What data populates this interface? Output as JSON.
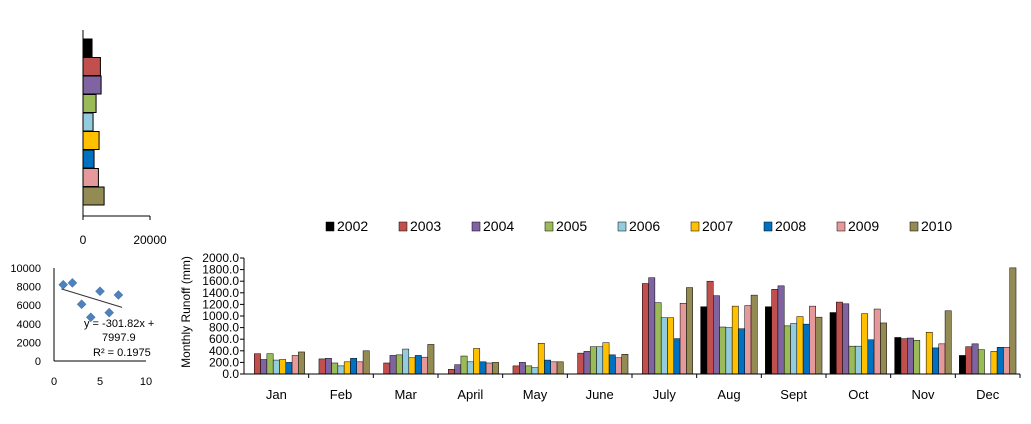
{
  "chart_data": [
    {
      "type": "bar",
      "orientation": "horizontal",
      "title": "",
      "xlabel": "",
      "ylabel": "",
      "xlim": [
        0,
        20000
      ],
      "x_ticks": [
        "0",
        "20000"
      ],
      "categories": [
        "2002",
        "2003",
        "2004",
        "2005",
        "2006",
        "2007",
        "2008",
        "2009",
        "2010"
      ],
      "values": [
        2700,
        5200,
        5400,
        3900,
        3000,
        4800,
        3300,
        4600,
        6300
      ],
      "colors": [
        "#000000",
        "#c0504d",
        "#8064a2",
        "#9bbb59",
        "#93cddd",
        "#ffc000",
        "#0070c0",
        "#e6999a",
        "#948a54"
      ],
      "grid": false
    },
    {
      "type": "scatter",
      "title": "",
      "xlabel": "",
      "ylabel": "",
      "xlim": [
        0,
        10
      ],
      "ylim": [
        0,
        10000
      ],
      "x_ticks": [
        "0",
        "5",
        "10"
      ],
      "y_ticks": [
        "0",
        "2000",
        "4000",
        "6000",
        "8000",
        "10000"
      ],
      "points": [
        {
          "x": 1,
          "y": 8200
        },
        {
          "x": 2,
          "y": 8400
        },
        {
          "x": 3,
          "y": 6100
        },
        {
          "x": 4,
          "y": 4700
        },
        {
          "x": 5,
          "y": 7500
        },
        {
          "x": 6,
          "y": 5200
        },
        {
          "x": 7,
          "y": 7100
        }
      ],
      "trendline": {
        "slope": -301.82,
        "intercept": 7997.9,
        "x_range": [
          1,
          7
        ]
      },
      "annotations": [
        "y = -301.82x +",
        "7997.9",
        "R² = 0.1975"
      ],
      "marker_color": "#4f81bd",
      "grid": false
    },
    {
      "type": "bar",
      "title": "",
      "xlabel": "",
      "ylabel": "Monthly  Runoff (mm)",
      "ylim": [
        0,
        2000
      ],
      "y_ticks": [
        "0.0",
        "200.0",
        "400.0",
        "600.0",
        "800.0",
        "1000.0",
        "1200.0",
        "1400.0",
        "1600.0",
        "1800.0",
        "2000.0"
      ],
      "categories": [
        "Jan",
        "Feb",
        "Mar",
        "April",
        "May",
        "June",
        "July",
        "Aug",
        "Sept",
        "Oct",
        "Nov",
        "Dec"
      ],
      "legend_position": "top",
      "grid": false,
      "series": [
        {
          "name": "2002",
          "color": "#000000",
          "values": [
            0,
            0,
            0,
            0,
            0,
            0,
            0,
            1160,
            1160,
            1060,
            630,
            320
          ]
        },
        {
          "name": "2003",
          "color": "#c0504d",
          "values": [
            350,
            260,
            190,
            80,
            140,
            360,
            1560,
            1600,
            1460,
            1240,
            610,
            470
          ]
        },
        {
          "name": "2004",
          "color": "#8064a2",
          "values": [
            250,
            270,
            320,
            160,
            200,
            390,
            1660,
            1350,
            1520,
            1210,
            620,
            520
          ]
        },
        {
          "name": "2005",
          "color": "#9bbb59",
          "values": [
            350,
            190,
            330,
            310,
            140,
            470,
            1230,
            810,
            830,
            480,
            580,
            420
          ]
        },
        {
          "name": "2006",
          "color": "#93cddd",
          "values": [
            240,
            140,
            430,
            210,
            110,
            470,
            970,
            800,
            870,
            480,
            0,
            0
          ]
        },
        {
          "name": "2007",
          "color": "#ffc000",
          "values": [
            250,
            210,
            280,
            440,
            530,
            540,
            970,
            1170,
            990,
            1040,
            720,
            390
          ]
        },
        {
          "name": "2008",
          "color": "#0070c0",
          "values": [
            200,
            270,
            320,
            210,
            240,
            330,
            610,
            780,
            860,
            590,
            450,
            460
          ]
        },
        {
          "name": "2009",
          "color": "#e6999a",
          "values": [
            320,
            210,
            290,
            190,
            210,
            280,
            1220,
            1180,
            1170,
            1120,
            520,
            460
          ]
        },
        {
          "name": "2010",
          "color": "#948a54",
          "values": [
            380,
            400,
            510,
            200,
            210,
            340,
            1490,
            1360,
            980,
            880,
            1090,
            1830
          ]
        }
      ]
    }
  ]
}
